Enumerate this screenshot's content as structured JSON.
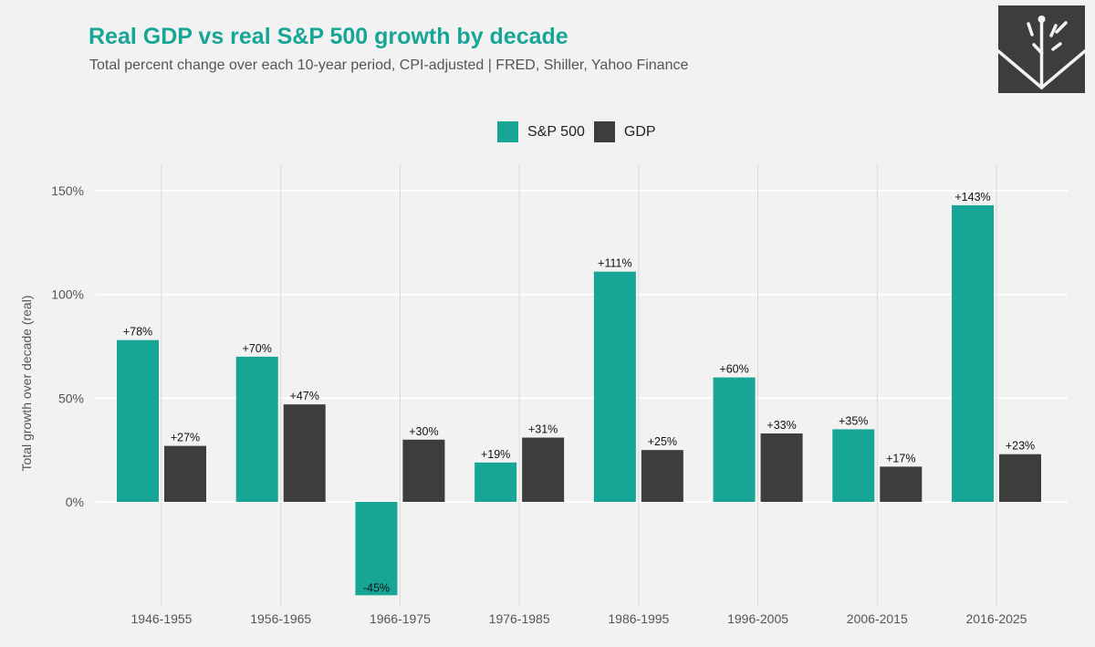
{
  "header": {
    "title": "Real GDP vs real S&P 500 growth by decade",
    "subtitle": "Total percent change over each 10-year period, CPI-adjusted | FRED, Shiller, Yahoo Finance"
  },
  "colors": {
    "sp500": "#17a596",
    "gdp": "#3d3d3d",
    "title": "#17a596",
    "logo": "#3d3d3d"
  },
  "logo": {
    "icon": "tree-logo-icon"
  },
  "chart_data": {
    "type": "bar",
    "title": "Real GDP vs real S&P 500 growth by decade",
    "subtitle": "Total percent change over each 10-year period, CPI-adjusted | FRED, Shiller, Yahoo Finance",
    "xlabel": "",
    "ylabel": "Total growth over decade (real)",
    "ylim": [
      -50,
      160
    ],
    "yticks": [
      0,
      50,
      100,
      150
    ],
    "ytick_labels": [
      "0%",
      "50%",
      "100%",
      "150%"
    ],
    "grid": true,
    "legend_position": "top-center",
    "categories": [
      "1946-1955",
      "1956-1965",
      "1966-1975",
      "1976-1985",
      "1986-1995",
      "1996-2005",
      "2006-2015",
      "2016-2025"
    ],
    "series": [
      {
        "name": "S&P 500",
        "color": "#17a596",
        "values": [
          78,
          70,
          -45,
          19,
          111,
          60,
          35,
          143
        ],
        "labels": [
          "+78%",
          "+70%",
          "-45%",
          "+19%",
          "+111%",
          "+60%",
          "+35%",
          "+143%"
        ]
      },
      {
        "name": "GDP",
        "color": "#3d3d3d",
        "values": [
          27,
          47,
          30,
          31,
          25,
          33,
          17,
          23
        ],
        "labels": [
          "+27%",
          "+47%",
          "+30%",
          "+31%",
          "+25%",
          "+33%",
          "+17%",
          "+23%"
        ]
      }
    ]
  }
}
